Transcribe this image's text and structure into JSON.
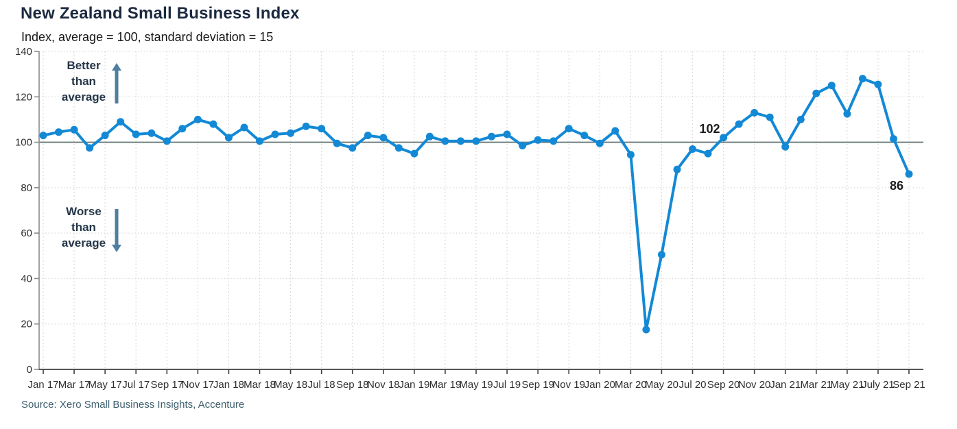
{
  "source_note": "Source: Xero Small Business Insights, Accenture",
  "colors": {
    "line": "#1389d6",
    "reference_line": "#6f7f7f",
    "axis_y": "#8a8a8a",
    "axis_x": "#3f3f3f",
    "grid_vertical": "#e3dada",
    "grid_horizontal": "#d9d9d9",
    "arrow": "#4e7ea0",
    "title": "#1b2940",
    "subtitle": "#161616",
    "annotation": "#243648",
    "source": "#3e5f6d",
    "tick_label": "#2e2e2e",
    "point_label": "#1c1c1c"
  },
  "chart_data": {
    "type": "line",
    "title": "New Zealand Small Business Index",
    "subtitle": "Index, average = 100, standard deviation = 15",
    "series_name": "New Zealand Small Business Index",
    "x": [
      "Jan 17",
      "Feb 17",
      "Mar 17",
      "Apr 17",
      "May 17",
      "Jun 17",
      "Jul 17",
      "Aug 17",
      "Sep 17",
      "Oct 17",
      "Nov 17",
      "Dec 17",
      "Jan 18",
      "Feb 18",
      "Mar 18",
      "Apr 18",
      "May 18",
      "Jun 18",
      "Jul 18",
      "Aug 18",
      "Sep 18",
      "Oct 18",
      "Nov 18",
      "Dec 18",
      "Jan 19",
      "Feb 19",
      "Mar 19",
      "Apr 19",
      "May 19",
      "Jun 19",
      "Jul 19",
      "Aug 19",
      "Sep 19",
      "Oct 19",
      "Nov 19",
      "Dec 19",
      "Jan 20",
      "Feb 20",
      "Mar 20",
      "Apr 20",
      "May 20",
      "Jun 20",
      "Jul 20",
      "Aug 20",
      "Sep 20",
      "Oct 20",
      "Nov 20",
      "Dec 20",
      "Jan 21",
      "Feb 21",
      "Mar 21",
      "Apr 21",
      "May 21",
      "Jun 21",
      "Jul 21",
      "Aug 21",
      "Sep 21"
    ],
    "values": [
      103,
      104.5,
      105.5,
      97.5,
      103,
      109,
      103.5,
      104,
      100.5,
      106,
      110,
      108,
      102,
      106.5,
      100.5,
      103.5,
      104,
      107,
      106,
      99.5,
      97.5,
      103,
      102,
      97.5,
      95,
      102.5,
      100.5,
      100.5,
      100.5,
      102.5,
      103.5,
      98.5,
      101,
      100.5,
      106,
      103,
      99.5,
      105,
      94.5,
      17.5,
      50.5,
      88,
      97,
      95,
      102,
      108,
      113,
      111,
      98,
      110,
      121.5,
      125,
      112.5,
      128,
      125.5,
      101.5,
      86
    ],
    "ylim": [
      0,
      140
    ],
    "ytick_step": 20,
    "y_tick_labels": [
      "0",
      "20",
      "40",
      "60",
      "80",
      "100",
      "120",
      "140"
    ],
    "x_tick_labels": [
      "Jan 17",
      "Mar 17",
      "May 17",
      "Jul 17",
      "Sep 17",
      "Nov 17",
      "Jan 18",
      "Mar 18",
      "May 18",
      "Jul 18",
      "Sep 18",
      "Nov 18",
      "Jan 19",
      "Mar 19",
      "May 19",
      "Jul 19",
      "Sep 19",
      "Nov 19",
      "Jan 20",
      "Mar 20",
      "May 20",
      "Jul 20",
      "Sep 20",
      "Nov 20",
      "Jan 21",
      "Mar 21",
      "May 21",
      "July 21",
      "Sep 21"
    ],
    "x_tick_every_months": 2,
    "reference_line": 100,
    "grid": true,
    "legend": false,
    "point_labels": [
      {
        "index": 44,
        "text": "102",
        "position": "above-left"
      },
      {
        "index": 56,
        "text": "86",
        "position": "below-left"
      }
    ],
    "annotations": [
      {
        "id": "better",
        "text": "Better\nthan\naverage",
        "arrow": "up"
      },
      {
        "id": "worse",
        "text": "Worse\nthan\naverage",
        "arrow": "down"
      }
    ]
  }
}
